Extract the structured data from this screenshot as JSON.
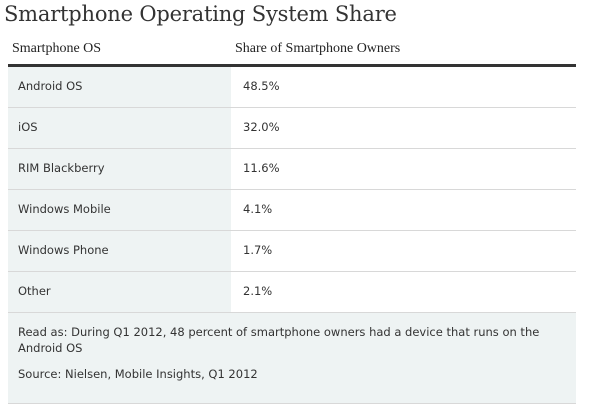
{
  "chart_data": {
    "type": "table",
    "title": "Smartphone Operating System Share",
    "columns": [
      "Smartphone OS",
      "Share of Smartphone Owners"
    ],
    "rows": [
      {
        "os": "Android OS",
        "share": "48.5%"
      },
      {
        "os": "iOS",
        "share": "32.0%"
      },
      {
        "os": "RIM Blackberry",
        "share": "11.6%"
      },
      {
        "os": "Windows Mobile",
        "share": "4.1%"
      },
      {
        "os": "Windows Phone",
        "share": "1.7%"
      },
      {
        "os": "Other",
        "share": "2.1%"
      }
    ],
    "read_as": "Read as: During Q1 2012, 48 percent  of smartphone owners had a device that runs on the Android OS",
    "source": "Source: Nielsen, Mobile Insights, Q1 2012"
  },
  "colors": {
    "row_shade": "#eef3f3",
    "header_rule": "#333333",
    "row_rule": "#d8d8d8"
  }
}
